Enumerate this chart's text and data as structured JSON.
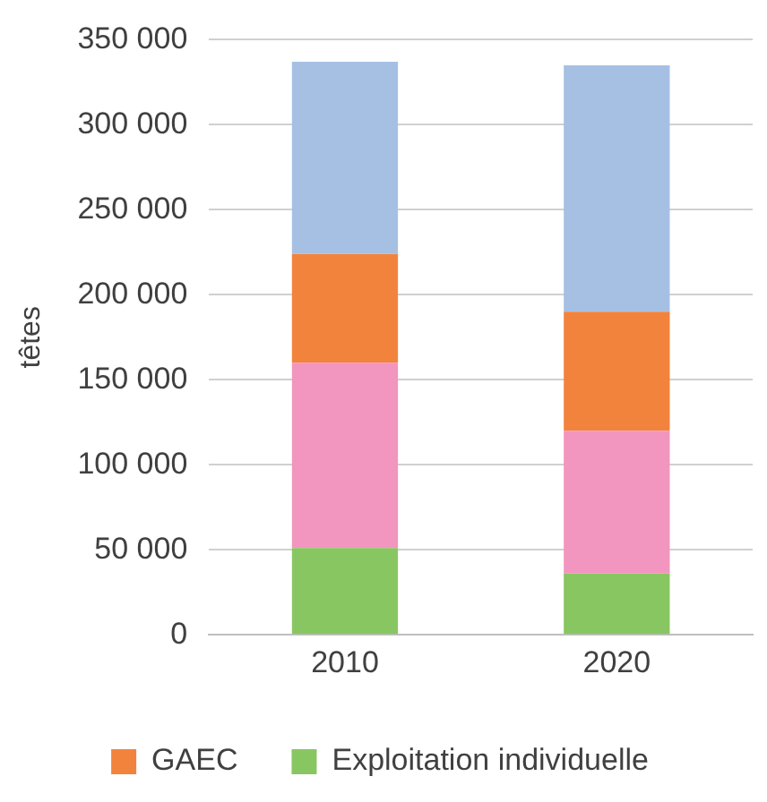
{
  "chart_data": {
    "type": "bar",
    "stacked": true,
    "ylabel": "têtes",
    "categories": [
      "2010",
      "2020"
    ],
    "series": [
      {
        "name": "Exploitation individuelle",
        "color": "#88c662",
        "values": [
          51000,
          36000
        ]
      },
      {
        "color": "#f295bf",
        "values": [
          109000,
          84000
        ]
      },
      {
        "name": "GAEC",
        "color": "#f2833d",
        "values": [
          64000,
          70000
        ]
      },
      {
        "color": "#a6c0e3",
        "values": [
          113000,
          145000
        ]
      }
    ],
    "ylim": [
      0,
      350000
    ],
    "yticks": [
      {
        "value": 0,
        "label": "0"
      },
      {
        "value": 50000,
        "label": "50 000"
      },
      {
        "value": 100000,
        "label": "100 000"
      },
      {
        "value": 150000,
        "label": "150 000"
      },
      {
        "value": 200000,
        "label": "200 000"
      },
      {
        "value": 250000,
        "label": "250 000"
      },
      {
        "value": 300000,
        "label": "300 000"
      },
      {
        "value": 350000,
        "label": "350 000"
      }
    ],
    "grid": "y",
    "legend": "bottom"
  }
}
